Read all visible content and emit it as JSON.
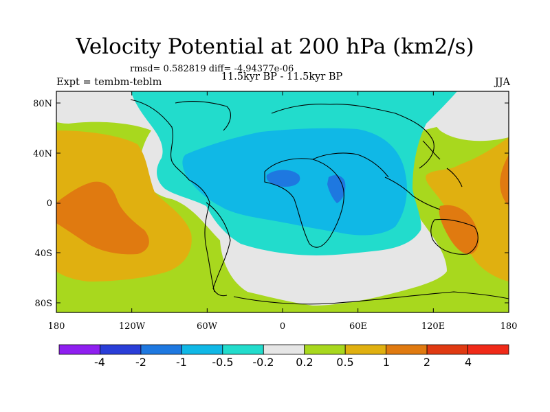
{
  "title": "Velocity Potential at 200 hPa (km2/s)",
  "stats": "rmsd= 0.582819 diff= -4.94377e-06",
  "left_label": "Expt = tembm-teblm",
  "subtitle": "11.5kyr BP - 11.5kyr BP",
  "right_label": "JJA",
  "lat_ticks": [
    "80N",
    "40N",
    "0",
    "40S",
    "80S"
  ],
  "lon_ticks": [
    "180",
    "120W",
    "60W",
    "0",
    "60E",
    "120E",
    "180"
  ],
  "colorbar": {
    "labels": [
      "-4",
      "-2",
      "-1",
      "-0.5",
      "-0.2",
      "0.2",
      "0.5",
      "1",
      "2",
      "4"
    ],
    "colors": [
      "#8f1ff0",
      "#2a3ed8",
      "#1e78e0",
      "#10b8e6",
      "#22dccc",
      "#e6e6e6",
      "#a8d81e",
      "#e0b010",
      "#e07a10",
      "#e03a12",
      "#f02a18"
    ]
  },
  "map_colors": {
    "ocean_base": "#a8d81e",
    "neutral": "#e6e6e6",
    "weak_negative": "#22dccc",
    "moderate_negative": "#10b8e6",
    "strong_negative": "#1e78e0",
    "weak_positive": "#e0b010",
    "moderate_positive": "#e07a10"
  }
}
